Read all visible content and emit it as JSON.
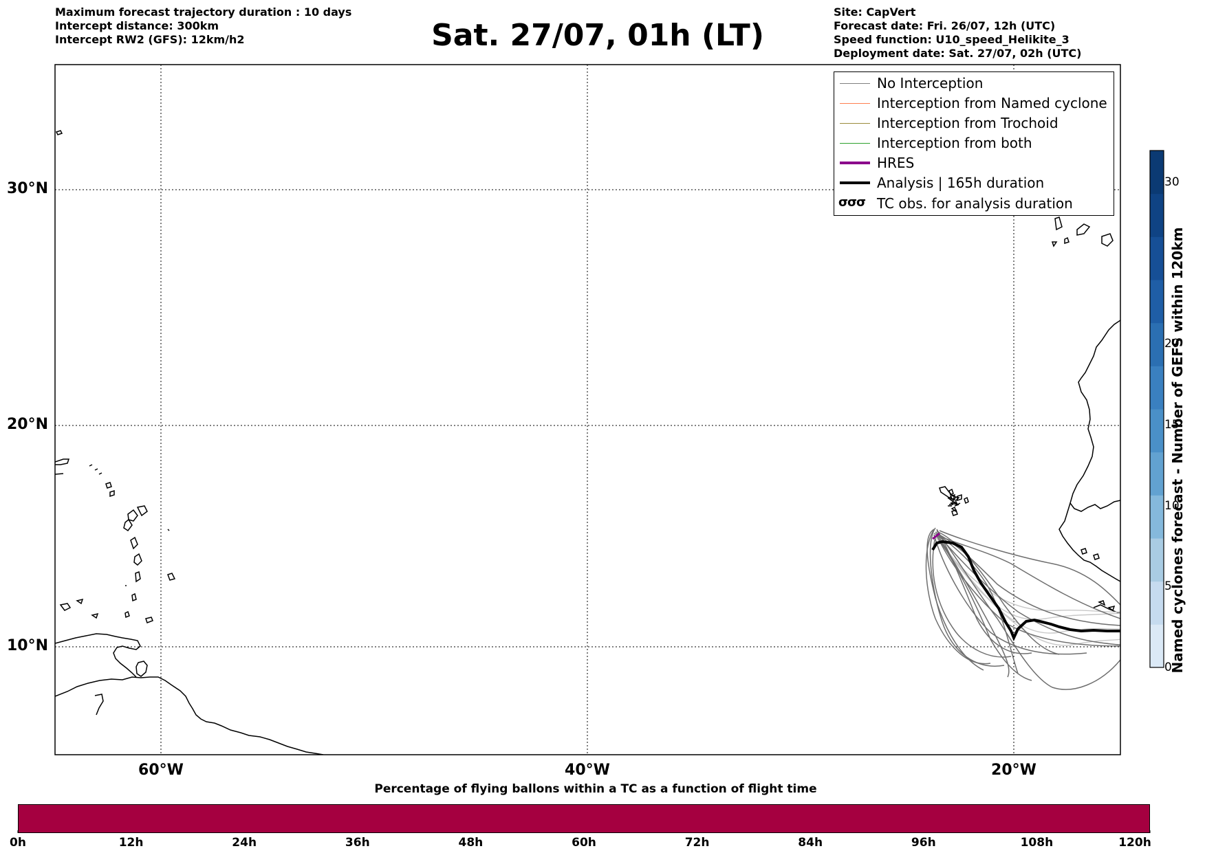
{
  "header_left": [
    "Maximum forecast trajectory duration : 10 days",
    "Intercept distance: 300km",
    "Intercept RW2 (GFS):  12km/h2"
  ],
  "header_right": [
    "Site: CapVert",
    "Forecast date: Fri. 26/07, 12h (UTC)",
    "Speed function: U10_speed_Helikite_3",
    "Deployment date: Sat. 27/07, 02h (UTC)"
  ],
  "title": "Sat. 27/07, 01h (LT)",
  "map": {
    "lat_labels": [
      "30°N",
      "20°N",
      "10°N"
    ],
    "lon_labels": [
      "60°W",
      "40°W",
      "20°W"
    ]
  },
  "legend": {
    "items": [
      {
        "label": "No Interception",
        "color": "#808080"
      },
      {
        "label": "Interception from Named cyclone",
        "color": "#ff7f50"
      },
      {
        "label": "Interception from Trochoid",
        "color": "#9a8b3a"
      },
      {
        "label": "Interception from both",
        "color": "#2ca02c"
      },
      {
        "label": "HRES",
        "color": "#8b008b"
      },
      {
        "label": "Analysis | 165h duration",
        "color": "#000000"
      }
    ],
    "tc_obs_symbol": "σσσ",
    "tc_obs_label": "TC obs. for analysis duration"
  },
  "colorbar": {
    "title": "Named cyclones forecast - Number of GEFS within 120km",
    "ticks": [
      "0",
      "5",
      "10",
      "15",
      "20",
      "30"
    ],
    "colors": [
      "#dbe9f6",
      "#c6dbef",
      "#a9cce3",
      "#85b9dc",
      "#62a2d1",
      "#4a90c8",
      "#3a80c0",
      "#2b6fb2",
      "#1f5ea6",
      "#164f96",
      "#0f4384",
      "#0b3a73"
    ]
  },
  "time_bar": {
    "title": "Percentage of flying ballons within a TC as a function of flight time",
    "ticks": [
      "0h",
      "12h",
      "24h",
      "36h",
      "48h",
      "60h",
      "72h",
      "84h",
      "96h",
      "108h",
      "120h"
    ],
    "color": "#a50040"
  }
}
